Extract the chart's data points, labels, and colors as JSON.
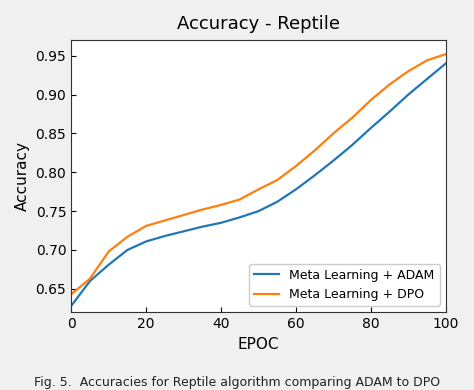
{
  "title": "Accuracy - Reptile",
  "xlabel": "EPOC",
  "ylabel": "Accuracy",
  "xlim": [
    0,
    100
  ],
  "ylim": [
    0.62,
    0.97
  ],
  "yticks": [
    0.65,
    0.7,
    0.75,
    0.8,
    0.85,
    0.9,
    0.95
  ],
  "xticks": [
    0,
    20,
    40,
    60,
    80,
    100
  ],
  "adam_x": [
    0,
    5,
    10,
    15,
    20,
    25,
    30,
    35,
    40,
    45,
    50,
    55,
    60,
    65,
    70,
    75,
    80,
    85,
    90,
    95,
    100
  ],
  "adam_y": [
    0.628,
    0.66,
    0.681,
    0.7,
    0.711,
    0.718,
    0.724,
    0.73,
    0.735,
    0.742,
    0.75,
    0.762,
    0.778,
    0.796,
    0.815,
    0.835,
    0.857,
    0.878,
    0.9,
    0.92,
    0.94
  ],
  "dpo_x": [
    0,
    5,
    10,
    15,
    20,
    25,
    30,
    35,
    40,
    45,
    50,
    55,
    60,
    65,
    70,
    75,
    80,
    85,
    90,
    95,
    100
  ],
  "dpo_y": [
    0.643,
    0.663,
    0.698,
    0.717,
    0.731,
    0.738,
    0.745,
    0.752,
    0.758,
    0.765,
    0.778,
    0.79,
    0.808,
    0.828,
    0.85,
    0.87,
    0.893,
    0.913,
    0.93,
    0.944,
    0.952
  ],
  "adam_color": "#1f77b4",
  "dpo_color": "#ff7f0e",
  "adam_label": "Meta Learning + ADAM",
  "dpo_label": "Meta Learning + DPO",
  "legend_loc": "lower right",
  "page_background": "#f0f0f0",
  "plot_background": "#ffffff",
  "title_fontsize": 13,
  "label_fontsize": 11,
  "tick_fontsize": 10,
  "line_width": 1.6,
  "caption": "Fig. 5.  Accuracies for Reptile algorithm comparing ADAM to DPO",
  "caption_fontsize": 9
}
